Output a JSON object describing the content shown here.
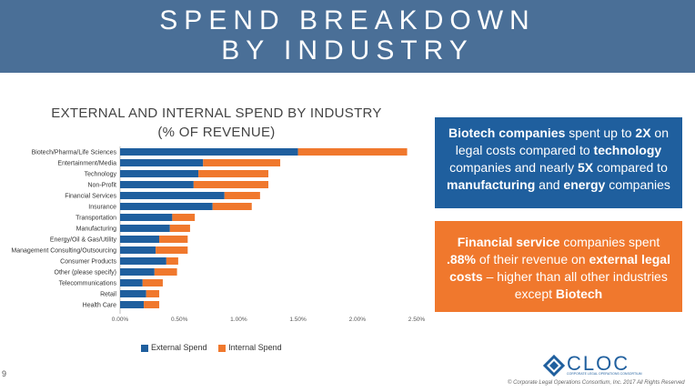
{
  "header": {
    "line1": "SPEND BREAKDOWN",
    "line2": "BY INDUSTRY"
  },
  "colors": {
    "header_bg": "#4a6f97",
    "external": "#1f5f9e",
    "internal": "#f0782d"
  },
  "chart_data": {
    "type": "bar",
    "orientation": "horizontal",
    "stacked": true,
    "title_line1": "EXTERNAL AND INTERNAL SPEND BY INDUSTRY",
    "title_line2": "(% OF REVENUE)",
    "categories": [
      "Biotech/Pharma/Life Sciences",
      "Entertainment/Media",
      "Technology",
      "Non-Profit",
      "Financial Services",
      "Insurance",
      "Transportation",
      "Manufacturing",
      "Energy/Oil & Gas/Utility",
      "Management Consulting/Outsourcing",
      "Consumer Products",
      "Other (please specify)",
      "Telecommunications",
      "Retail",
      "Health Care"
    ],
    "series": [
      {
        "name": "External Spend",
        "values": [
          1.5,
          0.7,
          0.66,
          0.62,
          0.88,
          0.78,
          0.44,
          0.42,
          0.33,
          0.3,
          0.39,
          0.29,
          0.19,
          0.22,
          0.2
        ]
      },
      {
        "name": "Internal Spend",
        "values": [
          0.92,
          0.65,
          0.59,
          0.63,
          0.3,
          0.33,
          0.19,
          0.17,
          0.24,
          0.27,
          0.1,
          0.19,
          0.17,
          0.11,
          0.13
        ]
      }
    ],
    "xlim": [
      0,
      2.5
    ],
    "xticks": [
      "0.00%",
      "0.50%",
      "1.00%",
      "1.50%",
      "2.00%",
      "2.50%"
    ],
    "legend_position": "bottom",
    "grid": false
  },
  "box1": {
    "p1": "Biotech companies",
    "p2": " spent up to ",
    "p3": "2X",
    "p4": " on legal costs compared to ",
    "p5": "technology",
    "p6": " companies and nearly ",
    "p7": "5X",
    "p8": " compared to ",
    "p9": "manufacturing",
    "p10": " and ",
    "p11": "energy",
    "p12": " companies"
  },
  "box2": {
    "p1": "Financial service",
    "p2": " companies spent ",
    "p3": ".88%",
    "p4": " of their revenue on ",
    "p5": "external legal costs",
    "p6": " – higher than all other industries except ",
    "p7": "Biotech"
  },
  "footer": {
    "page_number": "9",
    "logo_text": "CLOC",
    "logo_sub": "CORPORATE LEGAL OPERATIONS CONSORTIUM",
    "copyright": "© Corporate Legal Operations Consortium, Inc. 2017 All Rights Reserved"
  }
}
